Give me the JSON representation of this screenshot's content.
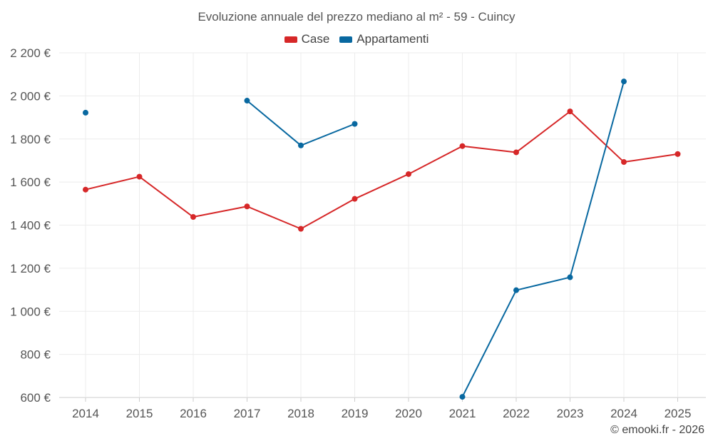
{
  "chart_data": {
    "type": "line",
    "title": "Evoluzione annuale del prezzo mediano al m² - 59 - Cuincy",
    "xlabel": "",
    "ylabel": "",
    "x": [
      "2014",
      "2015",
      "2016",
      "2017",
      "2018",
      "2019",
      "2020",
      "2021",
      "2022",
      "2023",
      "2024",
      "2025"
    ],
    "ylim": [
      600,
      2200
    ],
    "yticks": [
      600,
      800,
      1000,
      1200,
      1400,
      1600,
      1800,
      2000,
      2200
    ],
    "ytick_labels": [
      "600 €",
      "800 €",
      "1 000 €",
      "1 200 €",
      "1 400 €",
      "1 600 €",
      "1 800 €",
      "2 000 €",
      "2 200 €"
    ],
    "grid": true,
    "legend_position": "top-center",
    "series": [
      {
        "name": "Case",
        "color": "#d62728",
        "values": [
          1565,
          1625,
          1438,
          1487,
          1383,
          1522,
          1637,
          1767,
          1738,
          1928,
          1693,
          1730
        ]
      },
      {
        "name": "Appartamenti",
        "color": "#0868a0",
        "values": [
          1922,
          null,
          null,
          1978,
          1770,
          1870,
          null,
          603,
          1098,
          1158,
          2067,
          null
        ]
      }
    ]
  },
  "credit": "© emooki.fr - 2026"
}
